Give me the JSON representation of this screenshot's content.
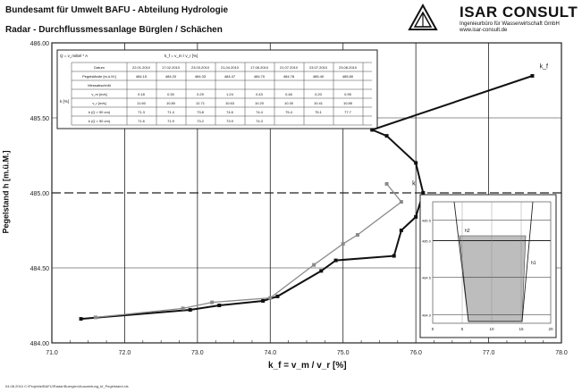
{
  "header": {
    "title": "Bundesamt für Umwelt BAFU - Abteilung Hydrologie",
    "subtitle": "Radar - Durchflussmessanlage Bürglen / Schächen",
    "brand": "ISAR CONSULT",
    "tagline_line1": "Ingenieurbüro für Wasserwirtschaft GmbH",
    "tagline_line2": "www.isar-consult.de"
  },
  "footer": "04.08.2010 C:\\Projekte\\BAFU\\Radar\\Buerglen\\Auswertung_kf_Pegelstand.xls",
  "colors": {
    "series_black": "#111111",
    "series_gray": "#8a8a8a",
    "grid": "#222222",
    "fill": "#bdbdbd"
  },
  "chart_data": {
    "type": "line",
    "xlabel": "k_f = v_m / v_r [%]",
    "ylabel": "Pegelstand h [m.ü.M.]",
    "xlim": [
      71.0,
      78.0
    ],
    "ylim": [
      484.0,
      486.0
    ],
    "xticks": [
      "71.0",
      "72.0",
      "73.0",
      "74.0",
      "75.0",
      "76.0",
      "77.0",
      "78.0"
    ],
    "yticks": [
      "484.00",
      "484.50",
      "485.00",
      "485.50",
      "486.00"
    ],
    "grid": true,
    "series": [
      {
        "name": "k_f",
        "color": "#111111",
        "points": [
          [
            71.4,
            484.16
          ],
          [
            72.9,
            484.22
          ],
          [
            73.3,
            484.25
          ],
          [
            73.9,
            484.28
          ],
          [
            74.1,
            484.31
          ],
          [
            74.7,
            484.48
          ],
          [
            74.9,
            484.55
          ],
          [
            75.7,
            484.58
          ],
          [
            75.8,
            484.75
          ],
          [
            76.0,
            484.84
          ],
          [
            76.1,
            485.0
          ],
          [
            76.0,
            485.2
          ],
          [
            75.6,
            485.38
          ],
          [
            75.4,
            485.42
          ],
          [
            77.6,
            485.78
          ]
        ]
      },
      {
        "name": "",
        "color": "#8a8a8a",
        "points": [
          [
            71.6,
            484.17
          ],
          [
            72.8,
            484.23
          ],
          [
            73.2,
            484.27
          ],
          [
            74.0,
            484.3
          ],
          [
            74.6,
            484.52
          ],
          [
            75.0,
            484.66
          ],
          [
            75.2,
            484.72
          ],
          [
            75.8,
            484.94
          ],
          [
            75.6,
            485.06
          ]
        ]
      }
    ],
    "point_labels": [
      {
        "text": "k_f",
        "x": 77.7,
        "y": 485.83
      },
      {
        "text": "k",
        "x": 75.95,
        "y": 485.05
      }
    ],
    "table": {
      "title_left": "Q = v_mittel * A",
      "title_right": "k_f = v_m / v_r [%]",
      "header_row": [
        "Datum",
        "22.01.2010",
        "17.02.2010",
        "23.03.2010",
        "21.04.2010",
        "17.06.2010",
        "21.07.2010",
        "23.07.2010",
        "23.08.2010"
      ],
      "pegel_row": [
        "Pegelstände [m.ü.M.]",
        "484.15",
        "484.20",
        "484.33",
        "484.47",
        "484.70",
        "484.78",
        "485.40",
        "485.80"
      ],
      "rows": [
        [
          "Messabschnitt",
          "",
          "",
          "",
          "",
          "",
          "",
          "",
          ""
        ],
        [
          "v_m [m/s]",
          "0.18",
          "0.30",
          "0.29",
          "1.24",
          "0.43",
          "0.46",
          "0.20",
          "0.95"
        ],
        [
          "v_r [m/s]",
          "11.60",
          "10.80",
          "12.71",
          "10.63",
          "10.20",
          "10.30",
          "10.41",
          "10.85"
        ],
        [
          "k (Q > 50 cm)",
          "71.3",
          "71.4",
          "73.8",
          "74.6",
          "74.4",
          "75.4",
          "75.1",
          "77.7"
        ],
        [
          "k (Q < 50 cm)",
          "71.6",
          "71.9",
          "73.2",
          "73.9",
          "74.3",
          "",
          "",
          ""
        ]
      ]
    },
    "inset": {
      "ylabels": [
        "485.5",
        "485.0",
        "484.5",
        "484.0"
      ],
      "xlabels": [
        "0",
        "5",
        "10",
        "15",
        "20"
      ],
      "labels": [
        "h2",
        "h1"
      ]
    }
  }
}
